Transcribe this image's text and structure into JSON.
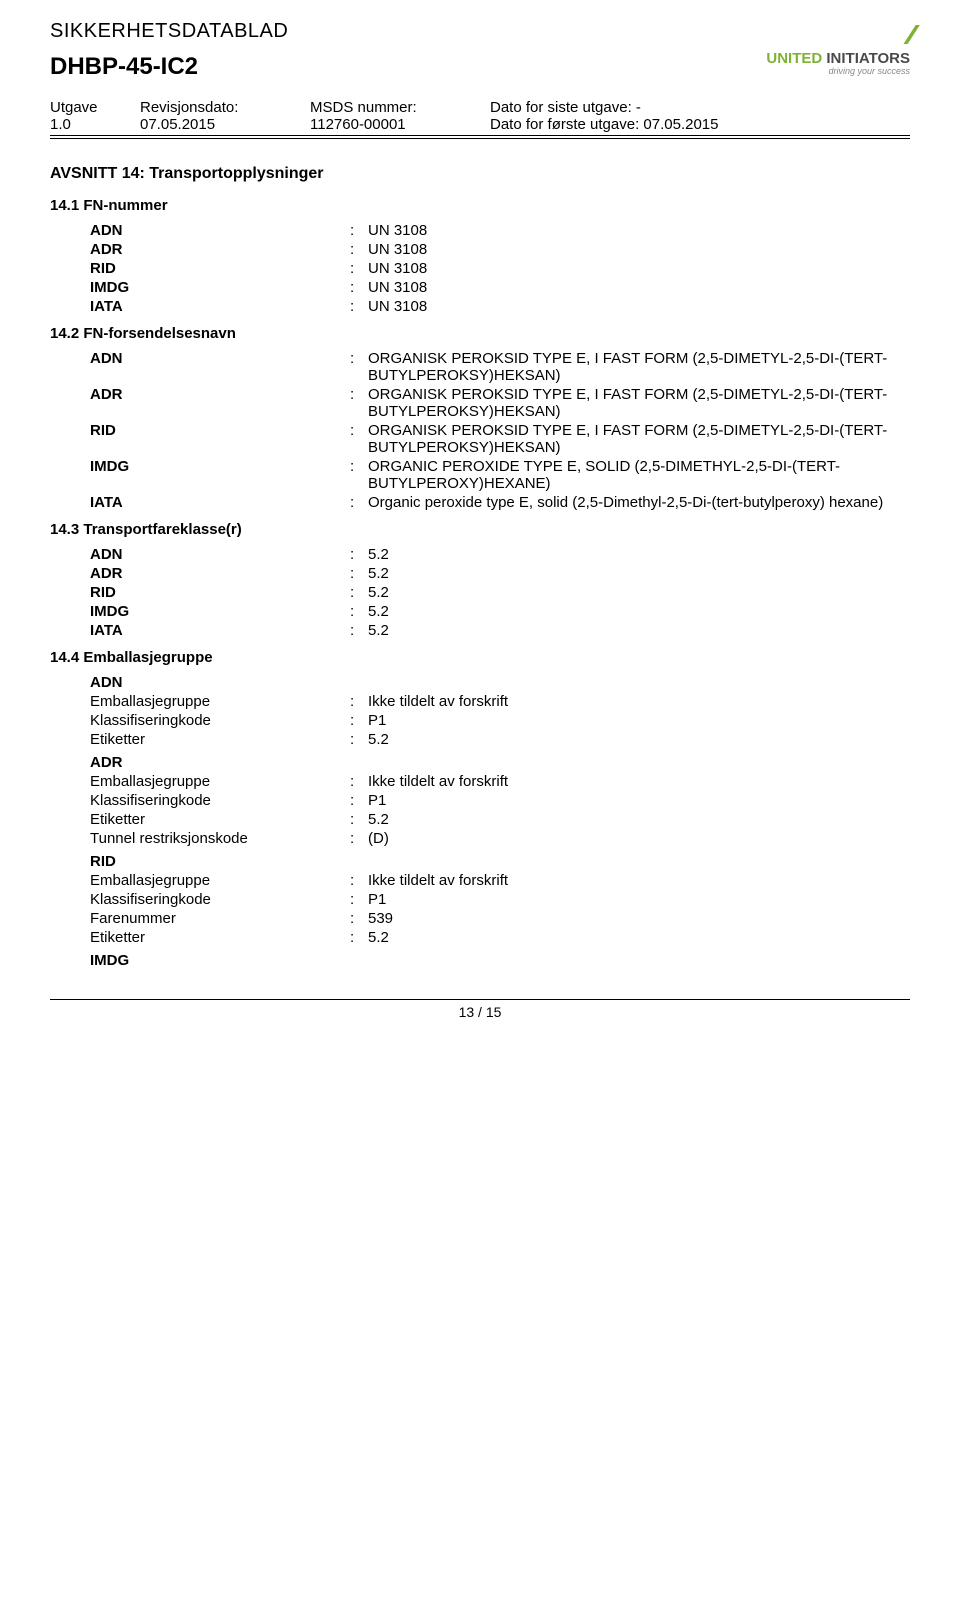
{
  "header": {
    "doc_title": "SIKKERHETSDATABLAD",
    "product": "DHBP-45-IC2",
    "logo": {
      "brand1": "UNITED",
      "brand2": " INITIATORS",
      "tagline": "driving your success"
    }
  },
  "meta": {
    "utgave_label": "Utgave",
    "utgave": "1.0",
    "rev_label": "Revisjonsdato:",
    "rev": "07.05.2015",
    "msds_label": "MSDS nummer:",
    "msds": "112760-00001",
    "siste_label": "Dato for siste utgave:",
    "siste": "-",
    "forste_label": "Dato for første utgave:",
    "forste": "07.05.2015"
  },
  "section14": {
    "title": "AVSNITT 14: Transportopplysninger",
    "s1": {
      "title": "14.1 FN-nummer",
      "rows": [
        {
          "k": "ADN",
          "v": "UN 3108"
        },
        {
          "k": "ADR",
          "v": "UN 3108"
        },
        {
          "k": "RID",
          "v": "UN 3108"
        },
        {
          "k": "IMDG",
          "v": "UN 3108"
        },
        {
          "k": "IATA",
          "v": "UN 3108"
        }
      ]
    },
    "s2": {
      "title": "14.2 FN-forsendelsesnavn",
      "rows": [
        {
          "k": "ADN",
          "v": "ORGANISK PEROKSID TYPE E, I FAST FORM (2,5-DIMETYL-2,5-DI-(TERT-BUTYLPEROKSY)HEKSAN)"
        },
        {
          "k": "ADR",
          "v": "ORGANISK PEROKSID TYPE E, I FAST FORM (2,5-DIMETYL-2,5-DI-(TERT-BUTYLPEROKSY)HEKSAN)"
        },
        {
          "k": "RID",
          "v": "ORGANISK PEROKSID TYPE E, I FAST FORM (2,5-DIMETYL-2,5-DI-(TERT-BUTYLPEROKSY)HEKSAN)"
        },
        {
          "k": "IMDG",
          "v": "ORGANIC PEROXIDE TYPE E, SOLID (2,5-DIMETHYL-2,5-DI-(TERT-BUTYLPEROXY)HEXANE)"
        },
        {
          "k": "IATA",
          "v": "Organic peroxide type E, solid (2,5-Dimethyl-2,5-Di-(tert-butylperoxy) hexane)"
        }
      ]
    },
    "s3": {
      "title": "14.3 Transportfareklasse(r)",
      "rows": [
        {
          "k": "ADN",
          "v": "5.2"
        },
        {
          "k": "ADR",
          "v": "5.2"
        },
        {
          "k": "RID",
          "v": "5.2"
        },
        {
          "k": "IMDG",
          "v": "5.2"
        },
        {
          "k": "IATA",
          "v": "5.2"
        }
      ]
    },
    "s4": {
      "title": "14.4 Emballasjegruppe",
      "groups": [
        {
          "head": "ADN",
          "rows": [
            {
              "k": "Emballasjegruppe",
              "v": "Ikke tildelt av forskrift"
            },
            {
              "k": "Klassifiseringkode",
              "v": "P1"
            },
            {
              "k": "Etiketter",
              "v": "5.2"
            }
          ]
        },
        {
          "head": "ADR",
          "rows": [
            {
              "k": "Emballasjegruppe",
              "v": "Ikke tildelt av forskrift"
            },
            {
              "k": "Klassifiseringkode",
              "v": "P1"
            },
            {
              "k": "Etiketter",
              "v": "5.2"
            },
            {
              "k": "Tunnel restriksjonskode",
              "v": "(D)"
            }
          ]
        },
        {
          "head": "RID",
          "rows": [
            {
              "k": "Emballasjegruppe",
              "v": "Ikke tildelt av forskrift"
            },
            {
              "k": "Klassifiseringkode",
              "v": "P1"
            },
            {
              "k": "Farenummer",
              "v": "539"
            },
            {
              "k": "Etiketter",
              "v": "5.2"
            }
          ]
        },
        {
          "head": "IMDG",
          "rows": []
        }
      ]
    }
  },
  "footer": {
    "page": "13 / 15"
  }
}
